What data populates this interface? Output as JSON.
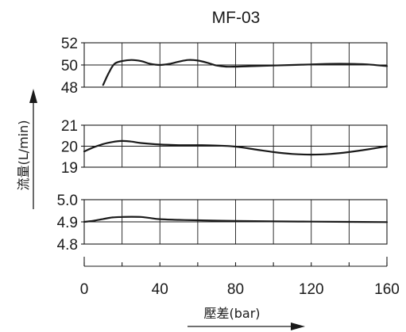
{
  "chart_data": {
    "type": "line",
    "title": "MF-03",
    "xlabel": "壓差(bar)",
    "ylabel": "流量(L/min)",
    "xlim": [
      0,
      160
    ],
    "x_ticks": [
      "0",
      "40",
      "80",
      "120",
      "160"
    ],
    "grid": true,
    "panels": [
      {
        "ylim": [
          48,
          52
        ],
        "y_ticks": [
          "52",
          "50",
          "48"
        ],
        "series": [
          {
            "x": [
              10,
              13,
              16,
              20,
              25,
              30,
              35,
              40,
              45,
              50,
              55,
              60,
              65,
              70,
              75,
              80,
              90,
              100,
              110,
              120,
              130,
              140,
              150,
              160
            ],
            "y": [
              48.2,
              49.3,
              50.1,
              50.35,
              50.45,
              50.35,
              50.1,
              50.0,
              50.1,
              50.3,
              50.45,
              50.4,
              50.2,
              49.95,
              49.85,
              49.85,
              49.9,
              49.95,
              50.0,
              50.05,
              50.1,
              50.1,
              50.05,
              49.9
            ]
          }
        ]
      },
      {
        "ylim": [
          19,
          21
        ],
        "y_ticks": [
          "21",
          "20",
          "19"
        ],
        "series": [
          {
            "x": [
              0,
              5,
              10,
              15,
              20,
              25,
              30,
              40,
              50,
              60,
              70,
              80,
              90,
              100,
              110,
              120,
              130,
              140,
              150,
              160
            ],
            "y": [
              19.75,
              19.95,
              20.1,
              20.2,
              20.25,
              20.22,
              20.15,
              20.08,
              20.05,
              20.05,
              20.03,
              19.98,
              19.85,
              19.72,
              19.63,
              19.6,
              19.63,
              19.72,
              19.85,
              20.0
            ]
          }
        ]
      },
      {
        "ylim": [
          4.8,
          5.0
        ],
        "y_ticks": [
          "5.0",
          "4.9",
          "4.8"
        ],
        "series": [
          {
            "x": [
              0,
              5,
              10,
              15,
              20,
              25,
              30,
              35,
              40,
              50,
              60,
              80,
              100,
              120,
              140,
              160
            ],
            "y": [
              4.9,
              4.905,
              4.913,
              4.92,
              4.922,
              4.923,
              4.922,
              4.917,
              4.912,
              4.909,
              4.907,
              4.904,
              4.902,
              4.901,
              4.9,
              4.899
            ]
          }
        ]
      }
    ]
  }
}
